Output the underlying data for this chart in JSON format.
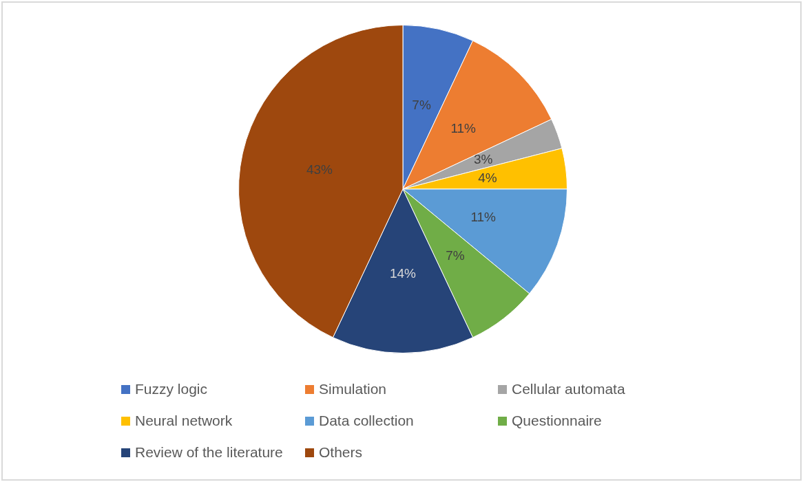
{
  "chart_data": {
    "type": "pie",
    "categories": [
      "Fuzzy logic",
      "Simulation",
      "Cellular automata",
      "Neural network",
      "Data collection",
      "Questionnaire",
      "Review of the literature",
      "Others"
    ],
    "values": [
      7,
      11,
      3,
      4,
      11,
      7,
      14,
      43
    ],
    "colors": [
      "#4472c4",
      "#ed7d31",
      "#a5a5a5",
      "#ffc000",
      "#5b9bd5",
      "#70ad47",
      "#264478",
      "#9e480e"
    ],
    "value_labels": [
      "7%",
      "11%",
      "3%",
      "4%",
      "11%",
      "7%",
      "14%",
      "43%"
    ],
    "legend": "bottom"
  }
}
